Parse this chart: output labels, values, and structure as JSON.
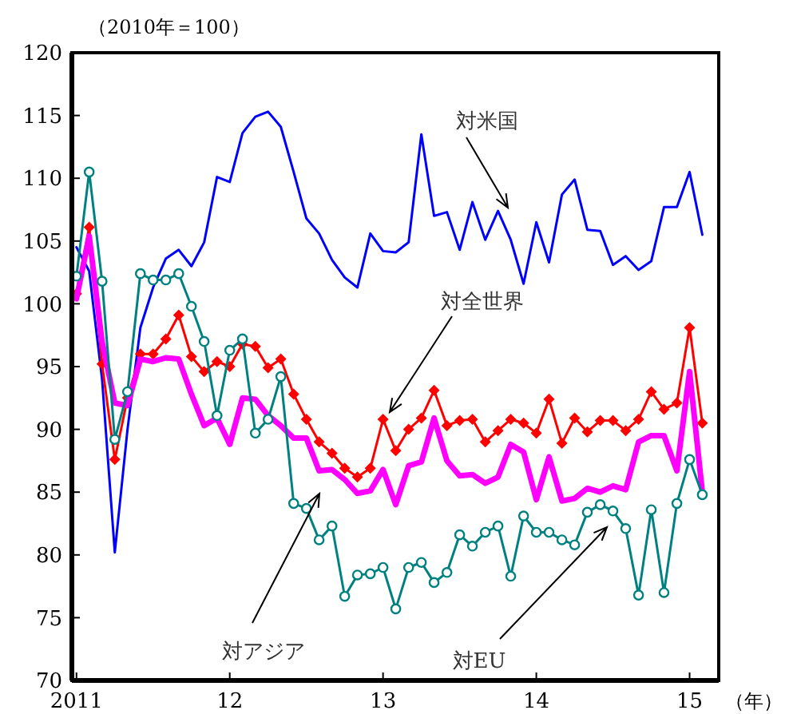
{
  "chart_data": {
    "type": "line",
    "ylabel": "（2010年＝100）",
    "xlabel": "（年）",
    "x": [
      2011,
      2011.083,
      2011.167,
      2011.25,
      2011.333,
      2011.417,
      2011.5,
      2011.583,
      2011.667,
      2011.75,
      2011.833,
      2011.917,
      2012,
      2012.083,
      2012.167,
      2012.25,
      2012.333,
      2012.417,
      2012.5,
      2012.583,
      2012.667,
      2012.75,
      2012.833,
      2012.917,
      2013,
      2013.083,
      2013.167,
      2013.25,
      2013.333,
      2013.417,
      2013.5,
      2013.583,
      2013.667,
      2013.75,
      2013.833,
      2013.917,
      2014,
      2014.083,
      2014.167,
      2014.25,
      2014.333,
      2014.417,
      2014.5,
      2014.583,
      2014.667,
      2014.75,
      2014.833,
      2014.917,
      2015,
      2015.083
    ],
    "xlim": [
      2010.97,
      2015.19
    ],
    "xticks": [
      {
        "value": 2011,
        "label": "2011"
      },
      {
        "value": 2012,
        "label": "12"
      },
      {
        "value": 2013,
        "label": "13"
      },
      {
        "value": 2014,
        "label": "14"
      },
      {
        "value": 2015,
        "label": "15"
      }
    ],
    "ylim": [
      70,
      120
    ],
    "yticks": [
      70,
      75,
      80,
      85,
      90,
      95,
      100,
      105,
      110,
      115,
      120
    ],
    "grid": false,
    "series": [
      {
        "name": "対米国",
        "color": "#0000ff",
        "marker": "none",
        "values": [
          104.5,
          102.6,
          94,
          80.2,
          90,
          98.1,
          101.3,
          103.6,
          104.3,
          103,
          104.9,
          110.1,
          109.7,
          113.6,
          114.9,
          115.3,
          114.1,
          110.5,
          106.8,
          105.6,
          103.5,
          102.1,
          101.3,
          105.6,
          104.2,
          104.1,
          104.9,
          113.5,
          107,
          107.3,
          104.3,
          108.1,
          105.1,
          107.4,
          105.1,
          101.6,
          106.5,
          103.3,
          108.7,
          109.9,
          105.9,
          105.8,
          103.1,
          103.8,
          102.7,
          103.4,
          107.7,
          107.7,
          110.5,
          105.5
        ]
      },
      {
        "name": "対全世界",
        "color": "#ff0000",
        "marker": "diamond",
        "values": [
          100.8,
          106.1,
          95.2,
          87.6,
          92.5,
          96,
          96,
          97.2,
          99.1,
          95.8,
          94.6,
          95.4,
          95,
          96.8,
          96.6,
          94.9,
          95.6,
          92.8,
          90.8,
          89,
          88.1,
          86.9,
          86.2,
          86.9,
          90.8,
          88.3,
          90,
          90.9,
          93.1,
          90.3,
          90.7,
          90.8,
          89,
          89.9,
          90.8,
          90.5,
          89.7,
          92.4,
          88.9,
          90.9,
          89.8,
          90.7,
          90.7,
          89.9,
          90.8,
          93,
          91.6,
          92.1,
          98.1,
          90.5
        ]
      },
      {
        "name": "対アジア",
        "color": "#ff00ff",
        "marker": "none",
        "values": [
          100.4,
          105.4,
          97,
          92.1,
          91.9,
          95.6,
          95.4,
          95.7,
          95.6,
          92.8,
          90.3,
          90.9,
          88.8,
          92.5,
          92.4,
          91.1,
          90.3,
          89.3,
          89.3,
          86.7,
          86.8,
          86,
          84.9,
          85.1,
          86.8,
          84,
          87.1,
          87.4,
          90.9,
          87.5,
          86.3,
          86.4,
          85.7,
          86.2,
          88.8,
          88.2,
          84.4,
          87.8,
          84.3,
          84.5,
          85.3,
          85,
          85.5,
          85.2,
          89,
          89.5,
          89.5,
          86.7,
          94.6,
          85
        ]
      },
      {
        "name": "対EU",
        "color": "#008080",
        "marker": "circle",
        "values": [
          102.2,
          110.5,
          101.8,
          89.2,
          93,
          102.4,
          101.9,
          101.9,
          102.4,
          99.8,
          97,
          91.1,
          96.3,
          97.2,
          89.7,
          90.8,
          94.2,
          84.1,
          83.7,
          81.2,
          82.3,
          76.7,
          78.4,
          78.5,
          79,
          75.7,
          79,
          79.4,
          77.8,
          78.6,
          81.6,
          80.7,
          81.8,
          82.3,
          78.3,
          83.1,
          81.8,
          81.8,
          81.2,
          80.8,
          83.4,
          84,
          83.5,
          82.1,
          76.8,
          83.6,
          77,
          84.1,
          87.6,
          84.8
        ]
      }
    ]
  }
}
